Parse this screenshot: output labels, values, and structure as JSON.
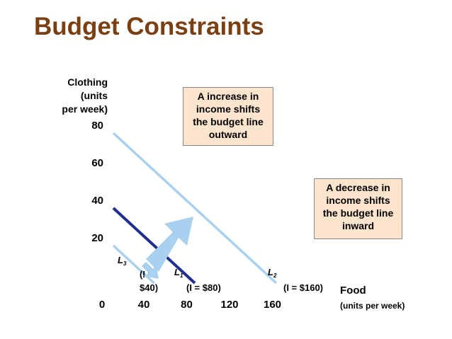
{
  "title": "Budget Constraints",
  "chart_data": {
    "type": "line",
    "ylabel_lines": [
      "Clothing",
      "(units",
      "per week)"
    ],
    "xlabel": "Food",
    "xlabel_units": "(units per week)",
    "x_ticks": [
      0,
      40,
      80,
      120,
      160
    ],
    "y_ticks": [
      20,
      40,
      60,
      80
    ],
    "xlim": [
      0,
      160
    ],
    "ylim": [
      0,
      80
    ],
    "series": [
      {
        "name": "L3",
        "label_main": "L",
        "label_sub": "3",
        "income_label_lines": [
          "(I =",
          "$40)"
        ],
        "x": [
          0,
          40
        ],
        "y": [
          20,
          0
        ],
        "color": "#a9d0ee"
      },
      {
        "name": "L1",
        "label_main": "L",
        "label_sub": "1",
        "income_label_lines": [
          "(I = $80)"
        ],
        "x": [
          0,
          80
        ],
        "y": [
          40,
          0
        ],
        "color": "#1f2f8f"
      },
      {
        "name": "L2",
        "label_main": "L",
        "label_sub": "2",
        "income_label_lines": [
          "(I = $160)"
        ],
        "x": [
          0,
          160
        ],
        "y": [
          80,
          0
        ],
        "color": "#a9d0ee"
      }
    ],
    "annotations": [
      {
        "id": "increase",
        "lines": [
          "A increase in",
          "income shifts",
          "the budget line",
          "outward"
        ]
      },
      {
        "id": "decrease",
        "lines": [
          "A decrease in",
          "income shifts",
          "the budget line",
          "inward"
        ]
      }
    ],
    "arrow_color": "#a9d0ee",
    "note_background": "#fde4cc"
  }
}
